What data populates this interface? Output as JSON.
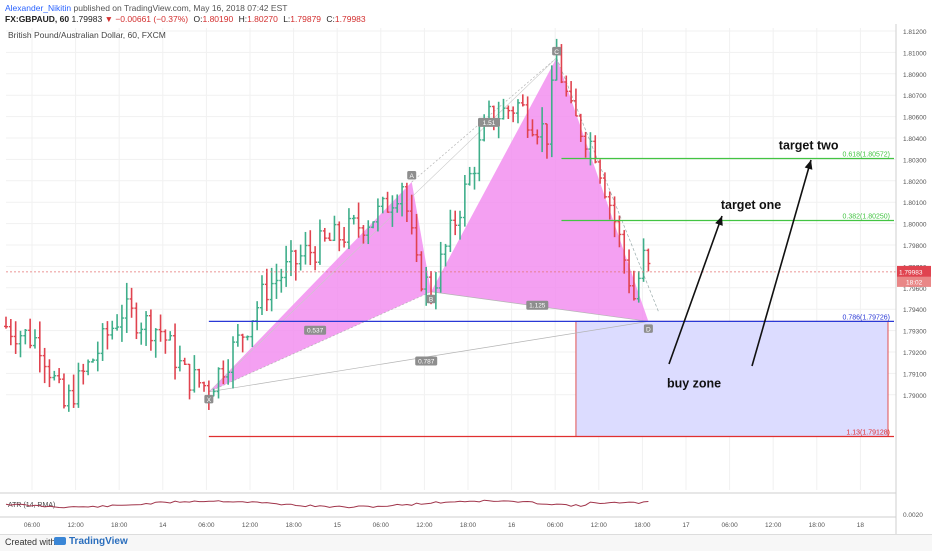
{
  "header": {
    "author": "Alexander_Nikitin",
    "published_text": "published on TradingView.com, May 16, 2018 07:42 EST",
    "symbol": "FX:GBPAUD, 60",
    "last": "1.79983",
    "change": "▼ −0.00661 (−0.37%)",
    "o_label": "O:",
    "o": "1.80190",
    "h_label": "H:",
    "h": "1.80270",
    "l_label": "L:",
    "l": "1.79879",
    "c_label": "C:",
    "c": "1.79983"
  },
  "chart_data": {
    "type": "ohlc",
    "title": "British Pound/Australian Dollar, 60, FXCM",
    "ylim": [
      1.7885,
      1.8125
    ],
    "y_ticks": [
      "1.81200",
      "1.81000",
      "1.80900",
      "1.80700",
      "1.80600",
      "1.80400",
      "1.80300",
      "1.80200",
      "1.80100",
      "1.80000",
      "1.79800",
      "1.79700",
      "1.79600",
      "1.79400",
      "1.79300",
      "1.79200",
      "1.79100",
      "1.79000"
    ],
    "x_ticks": [
      "06:00",
      "12:00",
      "18:00",
      "14",
      "06:00",
      "12:00",
      "18:00",
      "15",
      "06:00",
      "12:00",
      "18:00",
      "16",
      "06:00",
      "12:00",
      "18:00",
      "17",
      "06:00",
      "12:00",
      "18:00",
      "18"
    ],
    "price_label": "1.79983",
    "countdown_label": "18:02",
    "anchors": [
      {
        "x": 0,
        "p": 1.797
      },
      {
        "x": 7,
        "p": 1.7962
      },
      {
        "x": 12,
        "p": 1.7928
      },
      {
        "x": 16,
        "p": 1.7945
      },
      {
        "x": 24,
        "p": 1.7978
      },
      {
        "x": 32,
        "p": 1.7968
      },
      {
        "x": 37,
        "p": 1.7945
      },
      {
        "x": 42,
        "p": 1.7938
      },
      {
        "x": 48,
        "p": 1.7962
      },
      {
        "x": 54,
        "p": 1.799
      },
      {
        "x": 62,
        "p": 1.8008
      },
      {
        "x": 70,
        "p": 1.8018
      },
      {
        "x": 78,
        "p": 1.803
      },
      {
        "x": 82,
        "p": 1.8045
      },
      {
        "x": 85,
        "p": 1.8
      },
      {
        "x": 88,
        "p": 1.7988
      },
      {
        "x": 95,
        "p": 1.804
      },
      {
        "x": 100,
        "p": 1.8078
      },
      {
        "x": 106,
        "p": 1.8085
      },
      {
        "x": 112,
        "p": 1.807
      },
      {
        "x": 114,
        "p": 1.811
      },
      {
        "x": 117,
        "p": 1.808
      },
      {
        "x": 122,
        "p": 1.8062
      },
      {
        "x": 126,
        "p": 1.8025
      },
      {
        "x": 130,
        "p": 1.7985
      },
      {
        "x": 132,
        "p": 1.8005
      },
      {
        "x": 133,
        "p": 1.7999
      }
    ],
    "xabcd": [
      {
        "name": "X",
        "x": 42,
        "p": 1.7936,
        "pos": "below"
      },
      {
        "name": "A",
        "x": 84,
        "p": 1.8045,
        "pos": "above"
      },
      {
        "name": "B",
        "x": 88,
        "p": 1.7988,
        "pos": "below"
      },
      {
        "name": "C",
        "x": 114,
        "p": 1.81095,
        "pos": "above"
      },
      {
        "name": "D",
        "x": 133,
        "p": 1.79726,
        "pos": "below"
      }
    ],
    "ratios": [
      {
        "text": "0.537",
        "x": 64,
        "p": 1.7968
      },
      {
        "text": "1.51",
        "x": 100,
        "p": 1.8076
      },
      {
        "text": "1.125",
        "x": 110,
        "p": 1.7981
      },
      {
        "text": "0.787",
        "x": 87,
        "p": 1.7952
      }
    ],
    "levels": [
      {
        "label": "0.618(1.80572)",
        "price": 1.80572,
        "color": "#43c443",
        "x_start": 115
      },
      {
        "label": "0.382(1.80250)",
        "price": 1.8025,
        "color": "#43c443",
        "x_start": 115
      },
      {
        "label": "0.786(1.79726)",
        "price": 1.79726,
        "color": "#2a38d6",
        "x_start": 42
      },
      {
        "label": "1.13(1.79128)",
        "price": 1.79128,
        "color": "#e03030",
        "x_start": 42
      }
    ],
    "buy_zone": {
      "label": "buy zone",
      "price_top": 1.79726,
      "price_bottom": 1.79128,
      "x_start": 118
    },
    "annotations": [
      {
        "text": "target one",
        "x": 148,
        "p": 1.8031
      },
      {
        "text": "target two",
        "x": 160,
        "p": 1.8062
      }
    ],
    "indicator": {
      "name": "ATR (14, RMA)",
      "tick": "0.0020"
    }
  },
  "footer": {
    "created_with": "Created with",
    "brand": "TradingView"
  }
}
